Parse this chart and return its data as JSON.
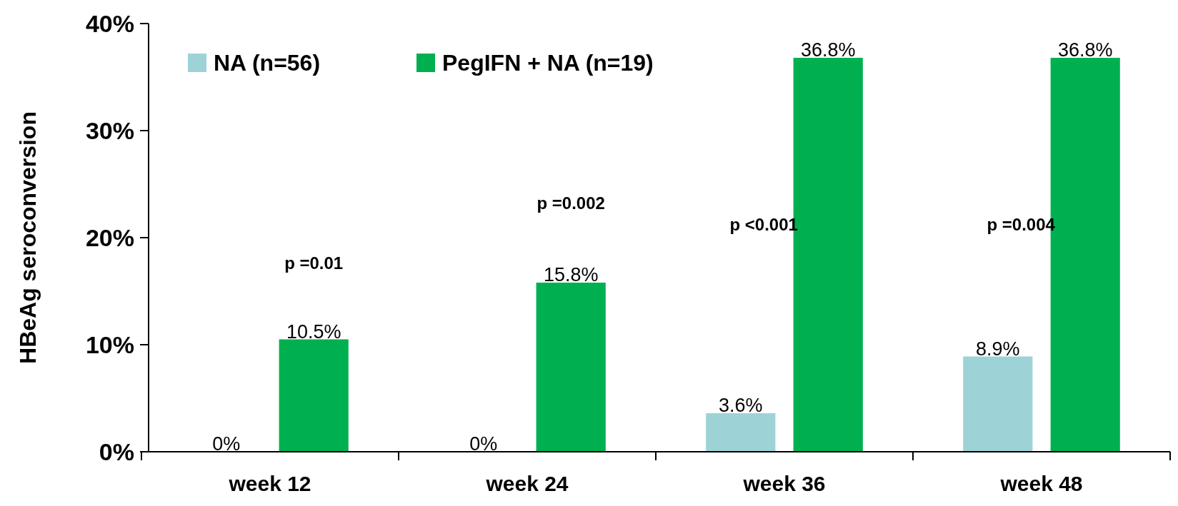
{
  "chart_data": {
    "type": "bar",
    "ylabel": "HBeAg seroconversion",
    "categories": [
      "week 12",
      "week 24",
      "week 36",
      "week 48"
    ],
    "series": [
      {
        "name": "NA (n=56)",
        "color": "#9dd3d6",
        "values": [
          0,
          0,
          3.6,
          8.9
        ],
        "value_labels": [
          "0%",
          "0%",
          "3.6%",
          "8.9%"
        ]
      },
      {
        "name": "PegIFN  + NA (n=19)",
        "color": "#00b050",
        "values": [
          10.5,
          15.8,
          36.8,
          36.8
        ],
        "value_labels": [
          "10.5%",
          "15.8%",
          "36.8%",
          "36.8%"
        ]
      }
    ],
    "ylim": [
      0,
      40
    ],
    "yticks": [
      {
        "value": 0,
        "label": "0%"
      },
      {
        "value": 10,
        "label": "10%"
      },
      {
        "value": 20,
        "label": "20%"
      },
      {
        "value": 30,
        "label": "30%"
      },
      {
        "value": 40,
        "label": "40%"
      }
    ],
    "annotations": [
      "p =0.01",
      "p =0.002",
      "p <0.001",
      "p =0.004"
    ],
    "grid": false,
    "legend": "top left"
  }
}
